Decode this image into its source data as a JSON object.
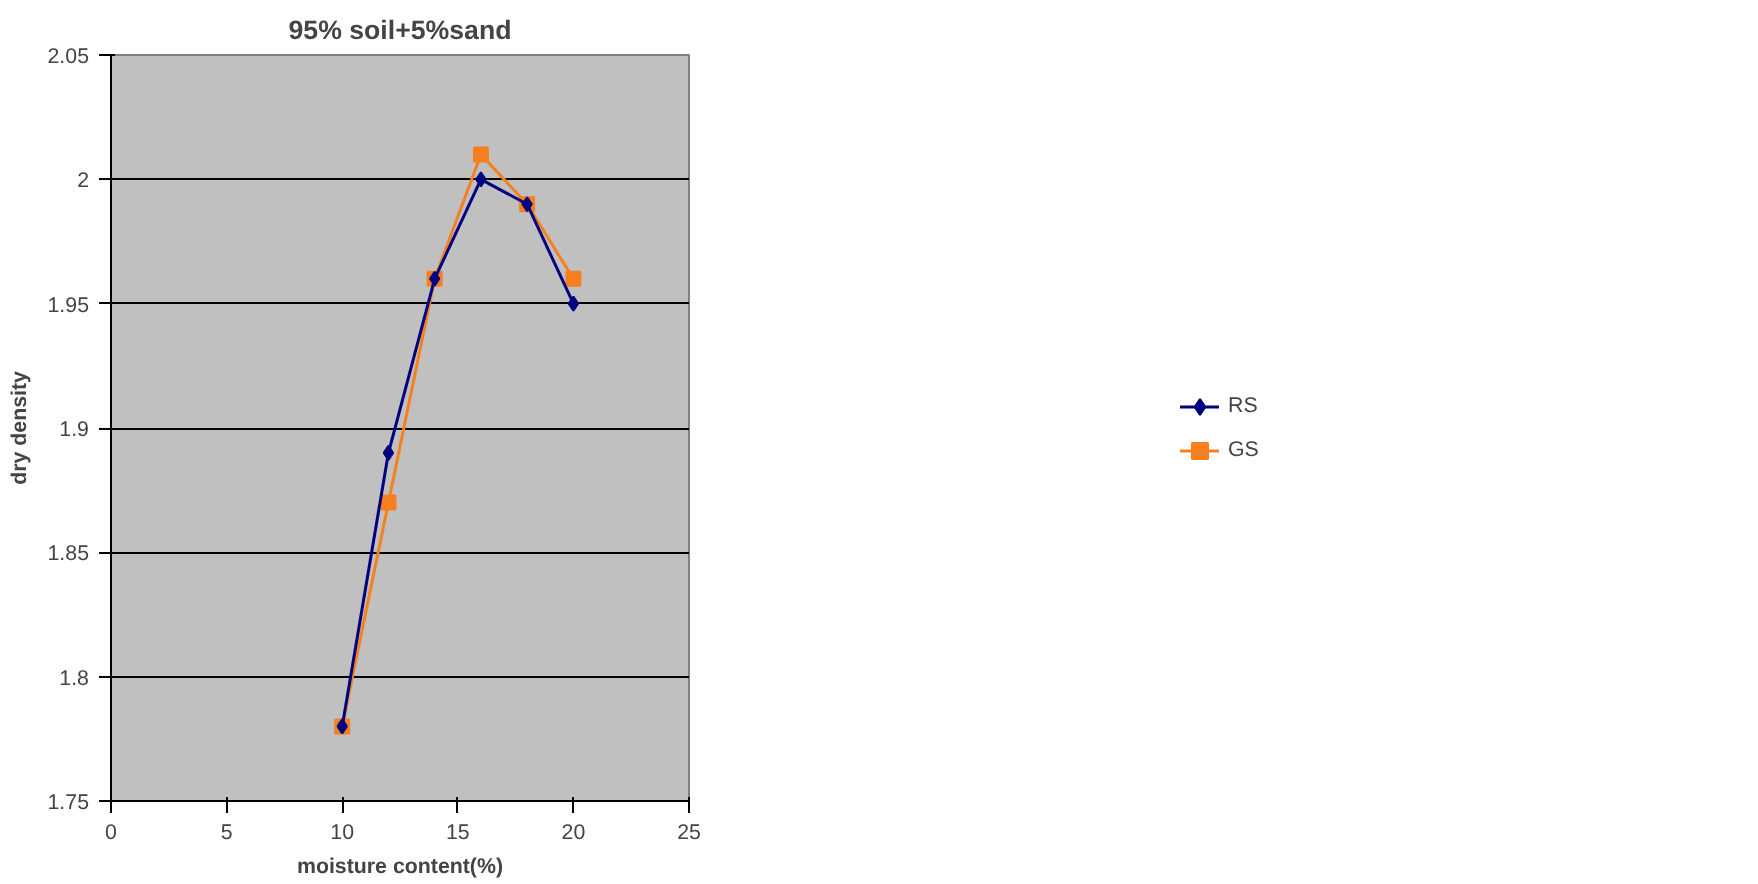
{
  "chart_data": {
    "type": "line",
    "title": "95% soil+5%sand",
    "xlabel": "moisture content(%)",
    "ylabel": "dry density",
    "x": [
      10,
      12,
      14,
      16,
      18,
      20
    ],
    "series": [
      {
        "name": "RS",
        "color": "#000080",
        "marker": "diamond",
        "values": [
          1.78,
          1.89,
          1.96,
          2.0,
          1.99,
          1.95
        ]
      },
      {
        "name": "GS",
        "color": "#f7801e",
        "marker": "square",
        "values": [
          1.78,
          1.87,
          1.96,
          2.01,
          1.99,
          1.96
        ]
      }
    ],
    "xlim": [
      0,
      25
    ],
    "xticks": [
      0,
      5,
      10,
      15,
      20,
      25
    ],
    "ylim": [
      1.75,
      2.05
    ],
    "yticks": [
      1.75,
      1.8,
      1.85,
      1.9,
      1.95,
      2,
      2.05
    ],
    "grid": "y",
    "legend": "right"
  }
}
